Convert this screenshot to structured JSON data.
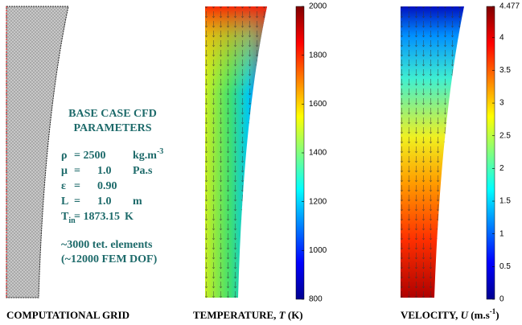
{
  "parameters": {
    "title_lines": [
      "BASE CASE CFD",
      "PARAMETERS"
    ],
    "rows": [
      {
        "symbol": "ρ",
        "value": "= 2500",
        "unit": "kg.m",
        "unit_sup": "-3"
      },
      {
        "symbol": "μ",
        "value": "=      1.0",
        "unit": "Pa.s"
      },
      {
        "symbol": "ε",
        "value": "=      0.90"
      },
      {
        "symbol": "L",
        "value": "=      1.0",
        "unit": "m"
      },
      {
        "symbol": "T",
        "symbol_sub": "in",
        "value": "= 1873.15",
        "unit": "K"
      }
    ],
    "mesh_lines": [
      "~3000 tet. elements",
      "(~12000 FEM DOF)"
    ]
  },
  "captions": {
    "grid": "COMPUTATIONAL GRID",
    "temperature": {
      "text": "TEMPERATURE, ",
      "symbol": "T",
      "unit": " (K)"
    },
    "velocity": {
      "text": "VELOCITY, ",
      "symbol": "U",
      "unit": " (m.s",
      "unit_sup": "-1",
      "end": ")"
    }
  },
  "colorbars": [
    {
      "lim": [
        800,
        2000
      ],
      "ticks": [
        800,
        1000,
        1200,
        1400,
        1600,
        1800,
        2000
      ]
    },
    {
      "lim": [
        0,
        4.477
      ],
      "ticks": [
        0,
        0.5,
        1,
        1.5,
        2,
        2.5,
        3,
        3.5,
        4,
        4.477
      ]
    }
  ]
}
